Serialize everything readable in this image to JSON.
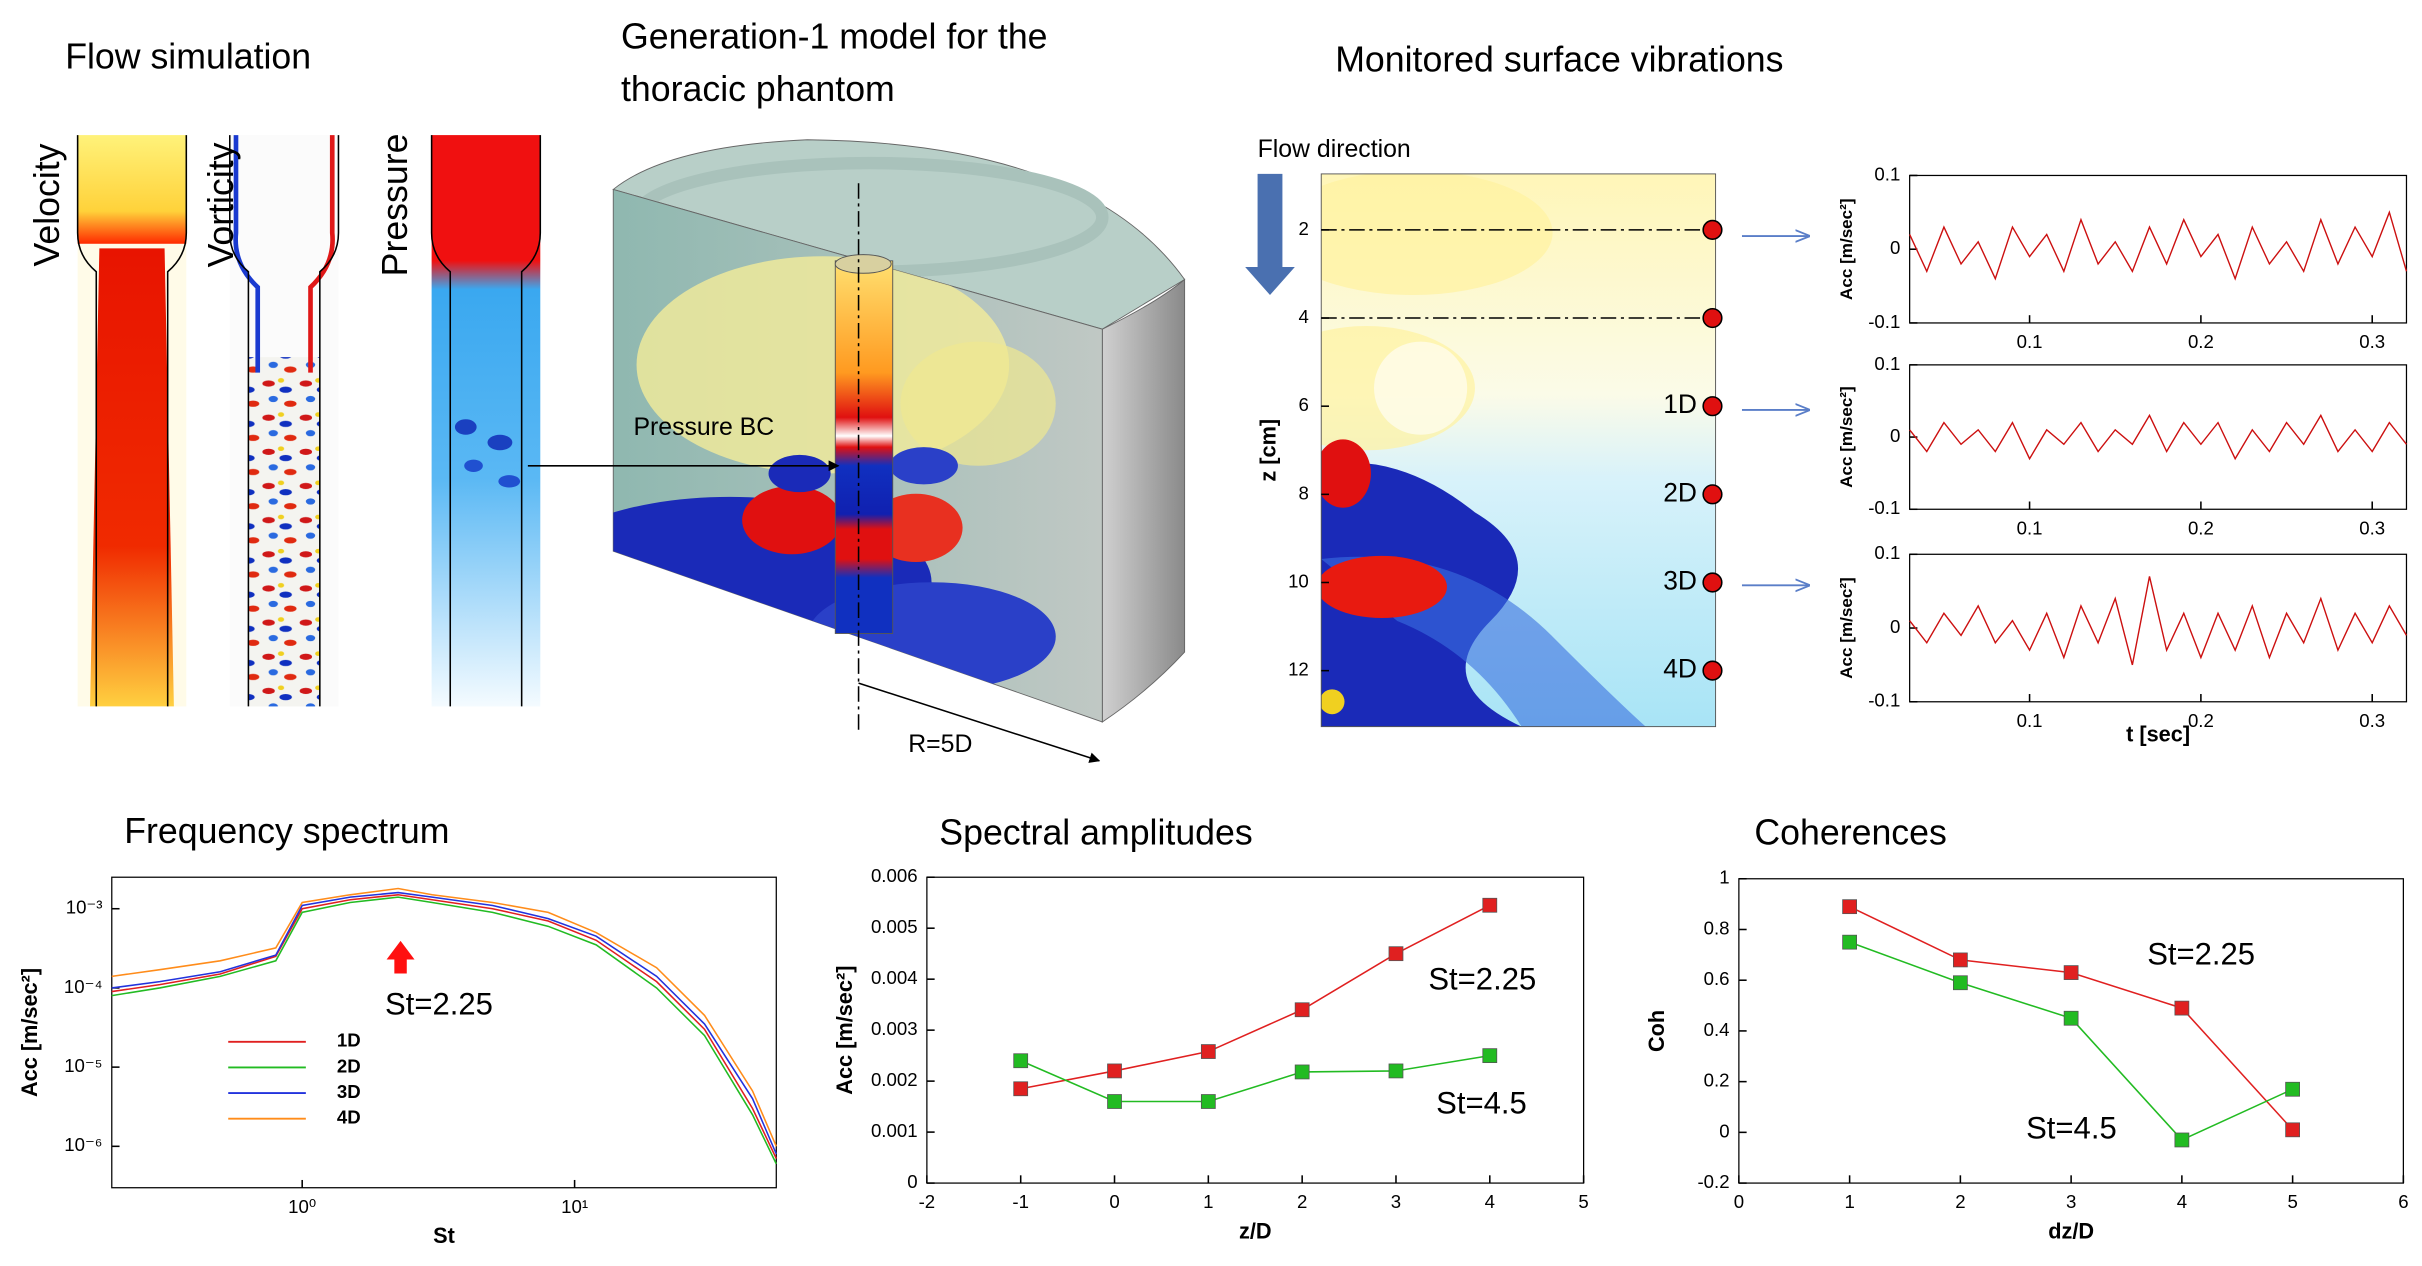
{
  "figure": {
    "flow_title": "Flow simulation",
    "flow_labels": [
      "Velocity",
      "Vorticity",
      "Pressure"
    ],
    "model_title": [
      "Generation-1 model for the",
      "thoracic phantom"
    ],
    "pressure_bc": "Pressure BC",
    "radius": "R=5D",
    "flow_direction": "Flow direction"
  },
  "chart_data": [
    {
      "type": "contour",
      "title": "Monitored surface vibrations",
      "ylabel": "z [cm]",
      "ylim": [
        0.73,
        13.27
      ],
      "y_inverted": true,
      "yticks": [
        2,
        4,
        6,
        8,
        10,
        12
      ],
      "probes": [
        2,
        4,
        6,
        8,
        10,
        12
      ],
      "probe_labels": [
        null,
        null,
        "1D",
        "2D",
        "3D",
        "4D"
      ],
      "probe_color": "#e01010"
    },
    {
      "type": "line",
      "ylabel": "Acc [m/sec²]",
      "xlim": [
        0.03,
        0.32
      ],
      "ylim": [
        -0.1,
        0.1
      ],
      "xticks": [
        0.1,
        0.2,
        0.3
      ],
      "yticks": [
        -0.1,
        0,
        0.1
      ],
      "x": [
        0.03,
        0.04,
        0.05,
        0.06,
        0.07,
        0.08,
        0.09,
        0.1,
        0.11,
        0.12,
        0.13,
        0.14,
        0.15,
        0.16,
        0.17,
        0.18,
        0.19,
        0.2,
        0.21,
        0.22,
        0.23,
        0.24,
        0.25,
        0.26,
        0.27,
        0.28,
        0.29,
        0.3,
        0.31,
        0.32
      ],
      "series": [
        {
          "color": "#cc1010",
          "values": [
            0.02,
            -0.03,
            0.03,
            -0.02,
            0.01,
            -0.04,
            0.03,
            -0.01,
            0.02,
            -0.03,
            0.04,
            -0.02,
            0.01,
            -0.03,
            0.03,
            -0.02,
            0.04,
            -0.01,
            0.02,
            -0.04,
            0.03,
            -0.02,
            0.01,
            -0.03,
            0.04,
            -0.02,
            0.03,
            -0.01,
            0.05,
            -0.03
          ]
        }
      ]
    },
    {
      "type": "line",
      "ylabel": "Acc [m/sec²]",
      "xlim": [
        0.03,
        0.32
      ],
      "ylim": [
        -0.1,
        0.1
      ],
      "xticks": [
        0.1,
        0.2,
        0.3
      ],
      "yticks": [
        -0.1,
        0,
        0.1
      ],
      "x": [
        0.03,
        0.04,
        0.05,
        0.06,
        0.07,
        0.08,
        0.09,
        0.1,
        0.11,
        0.12,
        0.13,
        0.14,
        0.15,
        0.16,
        0.17,
        0.18,
        0.19,
        0.2,
        0.21,
        0.22,
        0.23,
        0.24,
        0.25,
        0.26,
        0.27,
        0.28,
        0.29,
        0.3,
        0.31,
        0.32
      ],
      "series": [
        {
          "color": "#cc1010",
          "values": [
            0.01,
            -0.02,
            0.02,
            -0.01,
            0.01,
            -0.02,
            0.02,
            -0.03,
            0.01,
            -0.01,
            0.02,
            -0.02,
            0.01,
            -0.01,
            0.03,
            -0.02,
            0.02,
            -0.01,
            0.02,
            -0.03,
            0.01,
            -0.02,
            0.02,
            -0.01,
            0.03,
            -0.02,
            0.01,
            -0.02,
            0.02,
            -0.01
          ]
        }
      ]
    },
    {
      "type": "line",
      "ylabel": "Acc [m/sec²]",
      "xlabel": "t [sec]",
      "xlim": [
        0.03,
        0.32
      ],
      "ylim": [
        -0.1,
        0.1
      ],
      "xticks": [
        0.1,
        0.2,
        0.3
      ],
      "yticks": [
        -0.1,
        0,
        0.1
      ],
      "x": [
        0.03,
        0.04,
        0.05,
        0.06,
        0.07,
        0.08,
        0.09,
        0.1,
        0.11,
        0.12,
        0.13,
        0.14,
        0.15,
        0.16,
        0.17,
        0.18,
        0.19,
        0.2,
        0.21,
        0.22,
        0.23,
        0.24,
        0.25,
        0.26,
        0.27,
        0.28,
        0.29,
        0.3,
        0.31,
        0.32
      ],
      "series": [
        {
          "color": "#cc1010",
          "values": [
            0.01,
            -0.02,
            0.02,
            -0.01,
            0.03,
            -0.02,
            0.01,
            -0.03,
            0.02,
            -0.04,
            0.03,
            -0.02,
            0.04,
            -0.05,
            0.07,
            -0.03,
            0.02,
            -0.04,
            0.02,
            -0.03,
            0.03,
            -0.04,
            0.02,
            -0.02,
            0.04,
            -0.03,
            0.02,
            -0.02,
            0.03,
            -0.01
          ]
        }
      ]
    },
    {
      "type": "line",
      "title": "Frequency spectrum",
      "xlabel": "St",
      "ylabel": "Acc [m/sec²]",
      "xlog": true,
      "ylog": true,
      "xlim": [
        0.2,
        55
      ],
      "ylim": [
        3e-07,
        0.0025
      ],
      "xticks": [
        {
          "value": 1,
          "label": "10⁰"
        },
        {
          "value": 10,
          "label": "10¹"
        }
      ],
      "yticks": [
        {
          "value": 0.001,
          "label": "10⁻³"
        },
        {
          "value": 0.0001,
          "label": "10⁻⁴"
        },
        {
          "value": 1e-05,
          "label": "10⁻⁵"
        },
        {
          "value": 1e-06,
          "label": "10⁻⁶"
        }
      ],
      "legend": "center left",
      "annotations": [
        "St=2.25"
      ],
      "x": [
        0.2,
        0.3,
        0.5,
        0.8,
        1.0,
        1.5,
        2.25,
        3,
        5,
        8,
        12,
        20,
        30,
        45,
        55
      ],
      "series": [
        {
          "name": "1D",
          "color": "#e02020",
          "values": [
            9e-05,
            0.00011,
            0.00015,
            0.00025,
            0.001,
            0.0013,
            0.0015,
            0.0013,
            0.001,
            0.0007,
            0.0004,
            0.00012,
            3e-05,
            3e-06,
            7e-07
          ]
        },
        {
          "name": "2D",
          "color": "#22bb22",
          "values": [
            8e-05,
            0.0001,
            0.00014,
            0.00022,
            0.0009,
            0.0012,
            0.0014,
            0.0012,
            0.0009,
            0.0006,
            0.00035,
            0.0001,
            2.5e-05,
            2.5e-06,
            6e-07
          ]
        },
        {
          "name": "3D",
          "color": "#2233dd",
          "values": [
            0.0001,
            0.00012,
            0.00016,
            0.00026,
            0.0011,
            0.0014,
            0.0016,
            0.0014,
            0.0011,
            0.00075,
            0.00045,
            0.00014,
            3.5e-05,
            4e-06,
            8e-07
          ]
        },
        {
          "name": "4D",
          "color": "#ff8c1a",
          "values": [
            0.00014,
            0.00017,
            0.00022,
            0.00032,
            0.0012,
            0.0015,
            0.0018,
            0.0015,
            0.0012,
            0.0009,
            0.0005,
            0.00018,
            4.5e-05,
            5e-06,
            1e-06
          ]
        }
      ]
    },
    {
      "type": "line",
      "title": "Spectral amplitudes",
      "xlabel": "z/D",
      "ylabel": "Acc [m/sec²]",
      "xlim": [
        -2,
        5
      ],
      "ylim": [
        0,
        0.006
      ],
      "xticks": [
        -2,
        -1,
        0,
        1,
        2,
        3,
        4,
        5
      ],
      "yticks": [
        0,
        0.001,
        0.002,
        0.003,
        0.004,
        0.005,
        0.006
      ],
      "marker": "square",
      "annotations": [
        "St=2.25",
        "St=4.5"
      ],
      "x": [
        -1,
        0,
        1,
        2,
        3,
        4
      ],
      "series": [
        {
          "color": "#e02020",
          "values": [
            0.00185,
            0.0022,
            0.00258,
            0.0034,
            0.0045,
            0.00545
          ]
        },
        {
          "color": "#22bb22",
          "values": [
            0.0024,
            0.0016,
            0.0016,
            0.00218,
            0.0022,
            0.0025
          ]
        }
      ]
    },
    {
      "type": "line",
      "title": "Coherences",
      "xlabel": "dz/D",
      "ylabel": "Coh",
      "xlim": [
        0,
        6
      ],
      "ylim": [
        -0.2,
        1
      ],
      "xticks": [
        0,
        1,
        2,
        3,
        4,
        5,
        6
      ],
      "yticks": [
        -0.2,
        0,
        0.2,
        0.4,
        0.6,
        0.8,
        1
      ],
      "marker": "square",
      "annotations": [
        "St=2.25",
        "St=4.5"
      ],
      "x": [
        1,
        2,
        3,
        4,
        5
      ],
      "series": [
        {
          "color": "#e02020",
          "values": [
            0.89,
            0.68,
            0.63,
            0.49,
            0.01
          ]
        },
        {
          "color": "#22bb22",
          "values": [
            0.75,
            0.59,
            0.45,
            -0.03,
            0.17
          ]
        }
      ]
    }
  ]
}
